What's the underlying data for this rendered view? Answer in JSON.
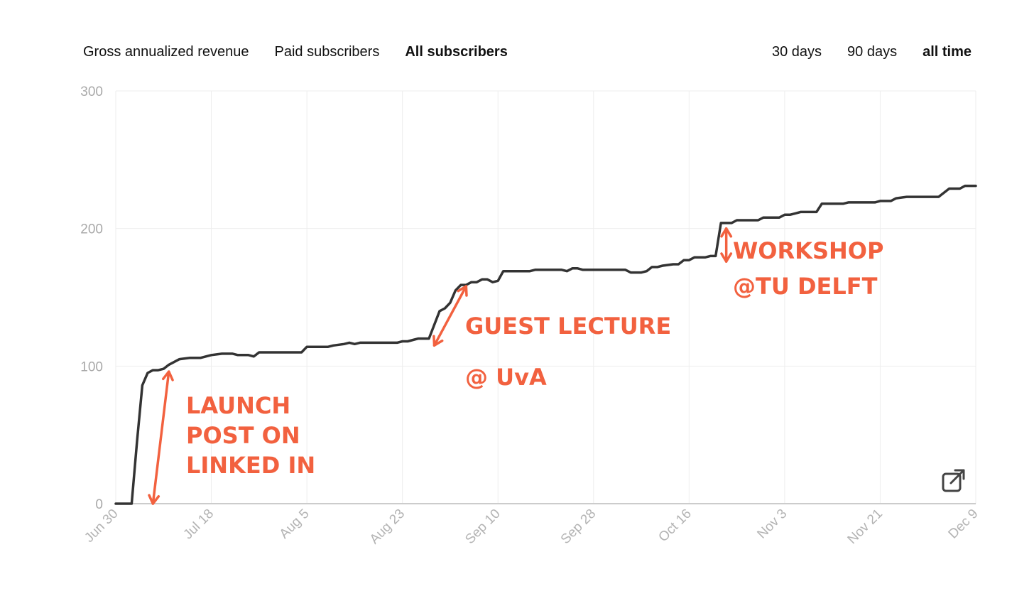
{
  "metric_tabs": [
    {
      "label": "Gross annualized revenue",
      "active": false
    },
    {
      "label": "Paid subscribers",
      "active": false
    },
    {
      "label": "All subscribers",
      "active": true
    }
  ],
  "range_tabs": [
    {
      "label": "30 days",
      "active": false
    },
    {
      "label": "90 days",
      "active": false
    },
    {
      "label": "all time",
      "active": true
    }
  ],
  "colors": {
    "line": "#333333",
    "annotation": "#f2613f",
    "grid": "#eeeeee",
    "axis": "#cccccc"
  },
  "icons": {
    "expand": "external-link-icon"
  },
  "chart_data": {
    "type": "line",
    "ylim": [
      0,
      300
    ],
    "yticks": [
      0,
      100,
      200,
      300
    ],
    "xticks": [
      "Jun 30",
      "Jul 18",
      "Aug 5",
      "Aug 23",
      "Sep 10",
      "Sep 28",
      "Oct 16",
      "Nov 3",
      "Nov 21",
      "Dec 9"
    ],
    "series": [
      {
        "points": [
          [
            "Jun 30",
            0
          ],
          [
            "Jul 3",
            0
          ],
          [
            "Jul 4",
            45
          ],
          [
            "Jul 5",
            86
          ],
          [
            "Jul 6",
            95
          ],
          [
            "Jul 7",
            97
          ],
          [
            "Jul 8",
            97
          ],
          [
            "Jul 9",
            98
          ],
          [
            "Jul 10",
            101
          ],
          [
            "Jul 12",
            105
          ],
          [
            "Jul 14",
            106
          ],
          [
            "Jul 16",
            106
          ],
          [
            "Jul 18",
            108
          ],
          [
            "Jul 20",
            109
          ],
          [
            "Jul 22",
            109
          ],
          [
            "Jul 23",
            108
          ],
          [
            "Jul 25",
            108
          ],
          [
            "Jul 26",
            107
          ],
          [
            "Jul 27",
            110
          ],
          [
            "Jul 29",
            110
          ],
          [
            "Aug 2",
            110
          ],
          [
            "Aug 4",
            110
          ],
          [
            "Aug 5",
            114
          ],
          [
            "Aug 7",
            114
          ],
          [
            "Aug 9",
            114
          ],
          [
            "Aug 10",
            115
          ],
          [
            "Aug 12",
            116
          ],
          [
            "Aug 13",
            117
          ],
          [
            "Aug 14",
            116
          ],
          [
            "Aug 15",
            117
          ],
          [
            "Aug 19",
            117
          ],
          [
            "Aug 22",
            117
          ],
          [
            "Aug 23",
            118
          ],
          [
            "Aug 24",
            118
          ],
          [
            "Aug 25",
            119
          ],
          [
            "Aug 26",
            120
          ],
          [
            "Aug 28",
            120
          ],
          [
            "Aug 29",
            130
          ],
          [
            "Aug 30",
            140
          ],
          [
            "Aug 31",
            142
          ],
          [
            "Sep 1",
            146
          ],
          [
            "Sep 2",
            155
          ],
          [
            "Sep 3",
            159
          ],
          [
            "Sep 4",
            159
          ],
          [
            "Sep 5",
            161
          ],
          [
            "Sep 6",
            161
          ],
          [
            "Sep 7",
            163
          ],
          [
            "Sep 8",
            163
          ],
          [
            "Sep 9",
            161
          ],
          [
            "Sep 10",
            162
          ],
          [
            "Sep 11",
            169
          ],
          [
            "Sep 14",
            169
          ],
          [
            "Sep 16",
            169
          ],
          [
            "Sep 17",
            170
          ],
          [
            "Sep 20",
            170
          ],
          [
            "Sep 22",
            170
          ],
          [
            "Sep 23",
            169
          ],
          [
            "Sep 24",
            171
          ],
          [
            "Sep 25",
            171
          ],
          [
            "Sep 26",
            170
          ],
          [
            "Sep 28",
            170
          ],
          [
            "Oct 1",
            170
          ],
          [
            "Oct 4",
            170
          ],
          [
            "Oct 5",
            168
          ],
          [
            "Oct 7",
            168
          ],
          [
            "Oct 8",
            169
          ],
          [
            "Oct 9",
            172
          ],
          [
            "Oct 10",
            172
          ],
          [
            "Oct 11",
            173
          ],
          [
            "Oct 13",
            174
          ],
          [
            "Oct 14",
            174
          ],
          [
            "Oct 15",
            177
          ],
          [
            "Oct 16",
            177
          ],
          [
            "Oct 17",
            179
          ],
          [
            "Oct 19",
            179
          ],
          [
            "Oct 20",
            180
          ],
          [
            "Oct 21",
            180
          ],
          [
            "Oct 22",
            204
          ],
          [
            "Oct 23",
            204
          ],
          [
            "Oct 24",
            204
          ],
          [
            "Oct 25",
            206
          ],
          [
            "Oct 28",
            206
          ],
          [
            "Oct 29",
            206
          ],
          [
            "Oct 30",
            208
          ],
          [
            "Nov 1",
            208
          ],
          [
            "Nov 2",
            208
          ],
          [
            "Nov 3",
            210
          ],
          [
            "Nov 4",
            210
          ],
          [
            "Nov 5",
            211
          ],
          [
            "Nov 6",
            212
          ],
          [
            "Nov 9",
            212
          ],
          [
            "Nov 10",
            218
          ],
          [
            "Nov 14",
            218
          ],
          [
            "Nov 15",
            219
          ],
          [
            "Nov 20",
            219
          ],
          [
            "Nov 21",
            220
          ],
          [
            "Nov 23",
            220
          ],
          [
            "Nov 24",
            222
          ],
          [
            "Nov 26",
            223
          ],
          [
            "Dec 2",
            223
          ],
          [
            "Dec 4",
            229
          ],
          [
            "Dec 5",
            229
          ],
          [
            "Dec 6",
            229
          ],
          [
            "Dec 7",
            231
          ],
          [
            "Dec 9",
            231
          ]
        ]
      }
    ],
    "annotations": [
      {
        "lines": [
          "LAUNCH",
          "POST ON",
          "LINKED IN"
        ],
        "arrow": [
          [
            "Jul 7",
            0
          ],
          [
            "Jul 10",
            96
          ]
        ]
      },
      {
        "lines": [
          "GUEST LECTURE",
          "@ UvA"
        ],
        "arrow": [
          [
            "Aug 29",
            115
          ],
          [
            "Sep 4",
            158
          ]
        ]
      },
      {
        "lines": [
          "WORKSHOP",
          "@TU DELFT"
        ],
        "arrow": [
          [
            "Oct 23",
            176
          ],
          [
            "Oct 23",
            200
          ]
        ]
      }
    ]
  }
}
